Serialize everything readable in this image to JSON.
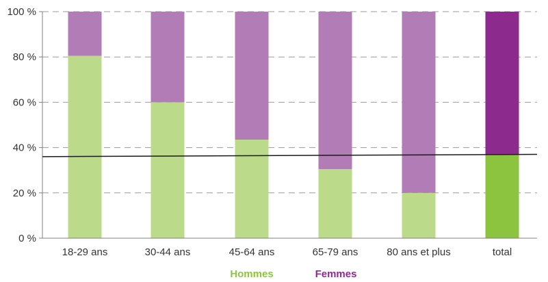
{
  "chart_data": {
    "type": "bar",
    "stacked": true,
    "categories": [
      "18-29 ans",
      "30-44 ans",
      "45-64 ans",
      "65-79 ans",
      "80 ans et plus",
      "total"
    ],
    "series": [
      {
        "name": "Hommes",
        "values": [
          80.5,
          60,
          43.5,
          30.5,
          20,
          37
        ]
      },
      {
        "name": "Femmes",
        "values": [
          19.5,
          40,
          56.5,
          69.5,
          80,
          63
        ]
      }
    ],
    "ylim": [
      0,
      100
    ],
    "yticks": [
      0,
      20,
      40,
      60,
      80,
      100
    ],
    "ytick_labels": [
      "0 %",
      "20 %",
      "40 %",
      "60 %",
      "80 %",
      "100 %"
    ],
    "grid": "dashed horizontal",
    "legend": "bottom-center",
    "reference_line": {
      "start": 36,
      "end": 37
    },
    "colors": {
      "hommes": "#bbdb8a",
      "femmes": "#b27cb7",
      "hommes_total": "#8cc43f",
      "femmes_total": "#8d2a8e",
      "grid": "#9a9a9a",
      "axis": "#7f7f7f",
      "reference_line": "#1a1a1a",
      "legend_hommes": "#8cc43f",
      "legend_femmes": "#8d2a8e"
    }
  }
}
